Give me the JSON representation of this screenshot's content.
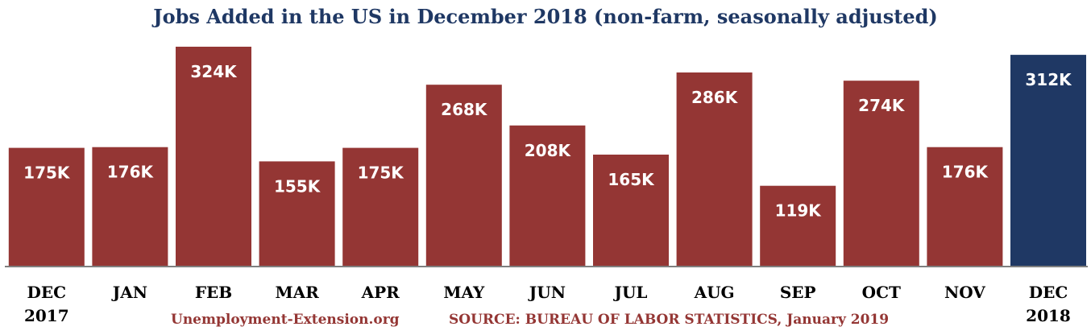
{
  "colors": {
    "bar": "#943634",
    "highlight_bar": "#1f3864",
    "title": "#1f3864",
    "footer": "#943634",
    "axis": "#7f7f7f"
  },
  "footer": {
    "site": "Unemployment-Extension.org",
    "source": "SOURCE: BUREAU OF LABOR STATISTICS, January 2019"
  },
  "chart_data": {
    "type": "bar",
    "title": "Jobs Added in the US in December 2018 (non-farm, seasonally adjusted)",
    "xlabel": "",
    "ylabel": "",
    "grid": false,
    "legend": "none",
    "categories": [
      [
        "DEC",
        "2017"
      ],
      [
        "JAN"
      ],
      [
        "FEB"
      ],
      [
        "MAR"
      ],
      [
        "APR"
      ],
      [
        "MAY"
      ],
      [
        "JUN"
      ],
      [
        "JUL"
      ],
      [
        "AUG"
      ],
      [
        "SEP"
      ],
      [
        "OCT"
      ],
      [
        "NOV"
      ],
      [
        "DEC",
        "2018"
      ]
    ],
    "values": [
      175,
      176,
      324,
      155,
      175,
      268,
      208,
      165,
      286,
      119,
      274,
      176,
      312
    ],
    "value_labels": [
      "175K",
      "176K",
      "324K",
      "155K",
      "175K",
      "268K",
      "208K",
      "165K",
      "286K",
      "119K",
      "274K",
      "176K",
      "312K"
    ],
    "highlight_index": 12,
    "units": "K"
  }
}
